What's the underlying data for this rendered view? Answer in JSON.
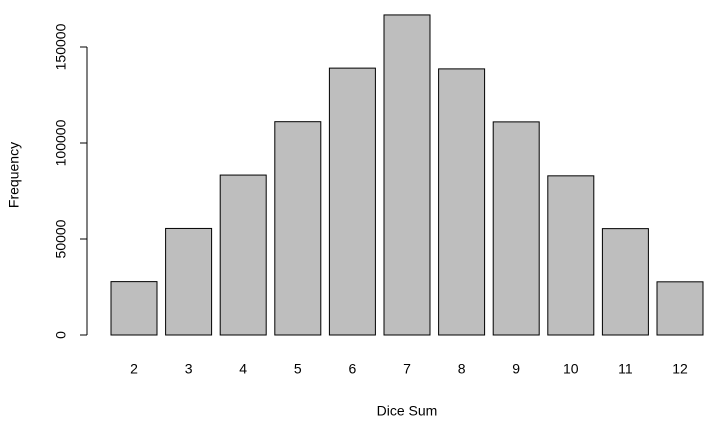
{
  "chart_data": {
    "type": "bar",
    "x_label": "Dice Sum",
    "y_label": "Frequency",
    "categories": [
      "2",
      "3",
      "4",
      "5",
      "6",
      "7",
      "8",
      "9",
      "10",
      "11",
      "12"
    ],
    "values": [
      27800,
      55500,
      83300,
      111100,
      139000,
      166700,
      138600,
      111000,
      82900,
      55400,
      27700
    ],
    "color": "#bebebe",
    "ylim": [
      0,
      175000
    ],
    "yticks": [
      0,
      50000,
      100000,
      150000
    ],
    "grid": false
  }
}
